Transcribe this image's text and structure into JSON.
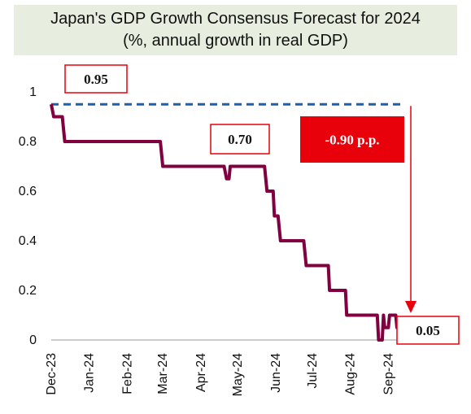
{
  "chart_data": {
    "type": "line",
    "title": "Japan's GDP Growth Consensus Forecast for 2024",
    "subtitle": "(%, annual growth in real GDP)",
    "xlabel": "",
    "ylabel": "",
    "ylim": [
      0,
      1
    ],
    "yticks": [
      "0",
      "0.2",
      "0.4",
      "0.6",
      "0.8",
      "1"
    ],
    "xticks": [
      "Dec-23",
      "Jan-24",
      "Feb-24",
      "Mar-24",
      "Apr-24",
      "May-24",
      "Jun-24",
      "Jul-24",
      "Aug-24",
      "Sep-24"
    ],
    "grid": false,
    "series": [
      {
        "color": "#800040",
        "points": [
          [
            "2023-12-01",
            0.95
          ],
          [
            "2023-12-03",
            0.9
          ],
          [
            "2023-12-10",
            0.9
          ],
          [
            "2023-12-12",
            0.8
          ],
          [
            "2024-02-28",
            0.8
          ],
          [
            "2024-03-01",
            0.7
          ],
          [
            "2024-04-20",
            0.7
          ],
          [
            "2024-04-22",
            0.65
          ],
          [
            "2024-04-24",
            0.65
          ],
          [
            "2024-04-25",
            0.7
          ],
          [
            "2024-05-23",
            0.7
          ],
          [
            "2024-05-25",
            0.6
          ],
          [
            "2024-05-30",
            0.6
          ],
          [
            "2024-05-31",
            0.5
          ],
          [
            "2024-06-03",
            0.5
          ],
          [
            "2024-06-05",
            0.4
          ],
          [
            "2024-06-24",
            0.4
          ],
          [
            "2024-06-26",
            0.3
          ],
          [
            "2024-07-14",
            0.3
          ],
          [
            "2024-07-15",
            0.2
          ],
          [
            "2024-07-28",
            0.2
          ],
          [
            "2024-07-29",
            0.1
          ],
          [
            "2024-08-23",
            0.1
          ],
          [
            "2024-08-24",
            0
          ],
          [
            "2024-08-27",
            0
          ],
          [
            "2024-08-28",
            0.1
          ],
          [
            "2024-08-29",
            0.05
          ],
          [
            "2024-09-01",
            0.05
          ],
          [
            "2024-09-02",
            0.1
          ],
          [
            "2024-09-07",
            0.1
          ],
          [
            "2024-09-08",
            0.05
          ],
          [
            "2024-09-13",
            0.05
          ]
        ]
      }
    ],
    "reference_line": {
      "value": 0.95,
      "color": "#1f5fb0",
      "style": "dashed"
    },
    "annotations": [
      {
        "text": "0.95"
      },
      {
        "text": "0.70"
      },
      {
        "text": "-0.90 p.p."
      },
      {
        "text": "0.05"
      }
    ],
    "colors": {
      "line": "#800040",
      "arrow": "#e8000b",
      "reference": "#1f5fb0",
      "title_bg": "#e7eedf"
    }
  }
}
